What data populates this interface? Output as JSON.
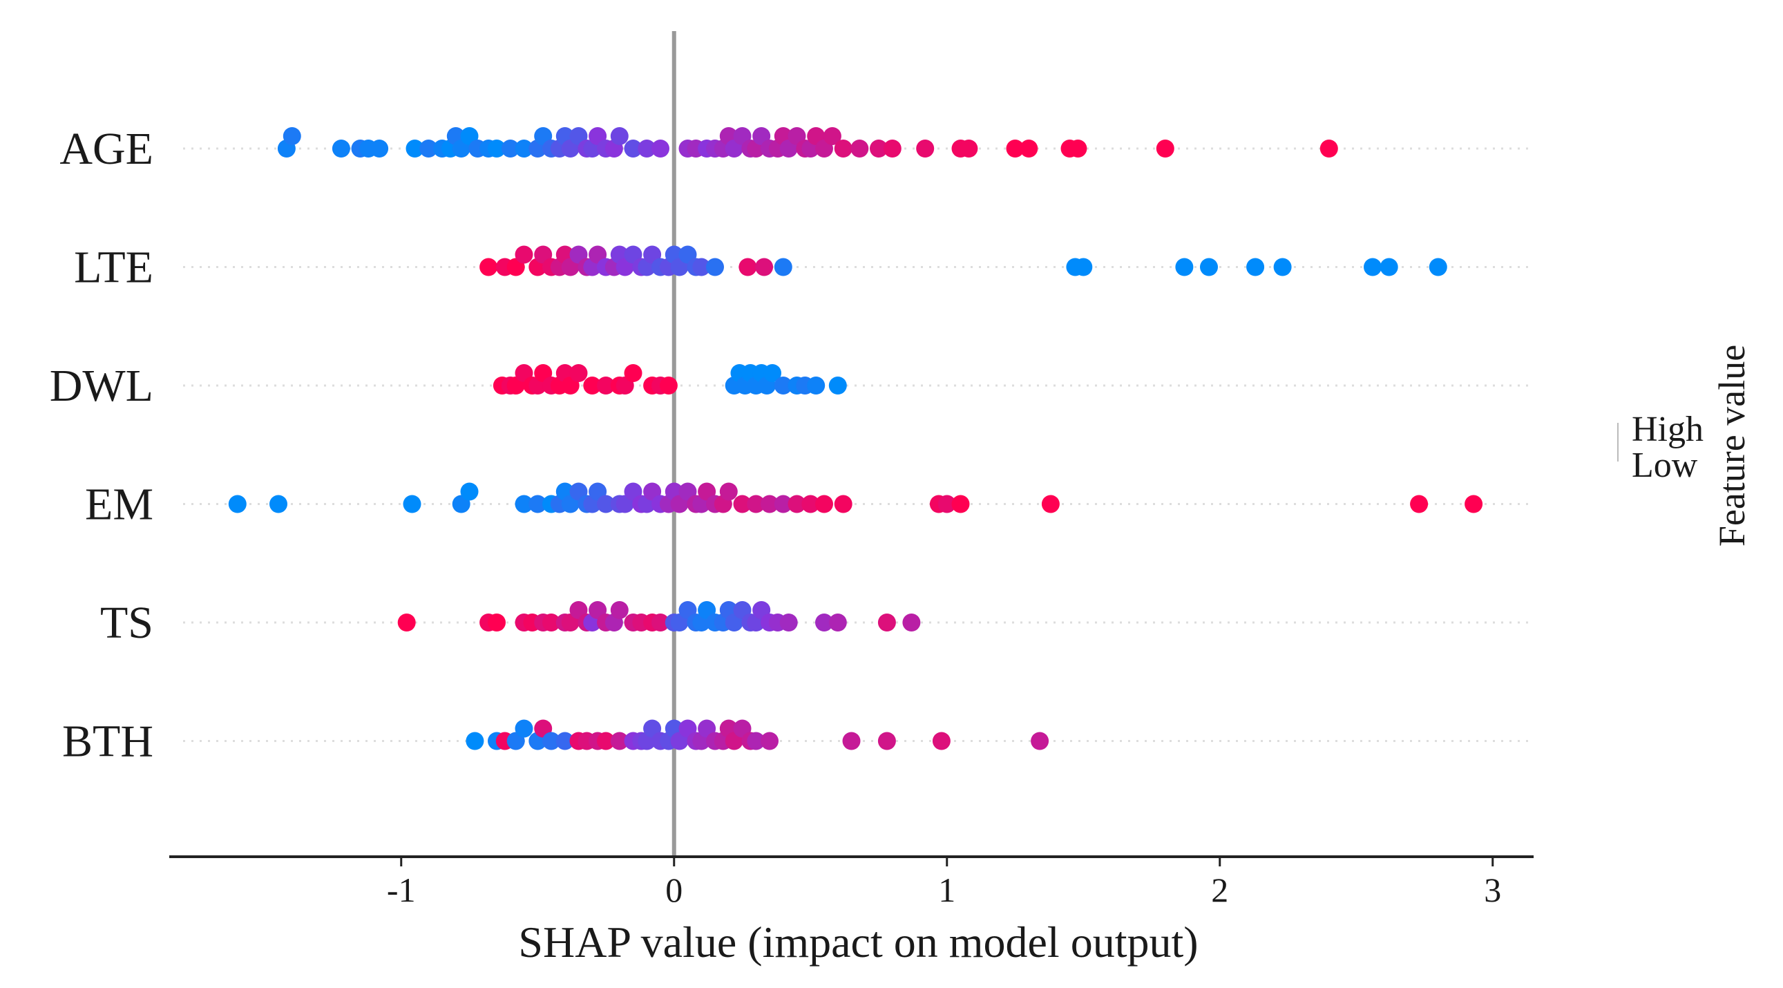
{
  "chart_data": {
    "type": "scatter",
    "subtype": "shap-beeswarm",
    "xlabel": "SHAP value (impact on model output)",
    "xlim": [
      -1.85,
      3.15
    ],
    "xticks": [
      -1,
      0,
      1,
      2,
      3
    ],
    "xtick_labels": [
      "-1",
      "0",
      "1",
      "2",
      "3"
    ],
    "zero_line": 0,
    "grid": false,
    "colorbar": {
      "title": "Feature value",
      "high_label": "High",
      "low_label": "Low",
      "high_color": "#ff0052",
      "low_color": "#008bfb"
    },
    "features": [
      {
        "name": "AGE",
        "points": [
          [
            -1.42,
            0.05
          ],
          [
            -1.4,
            0.1
          ],
          [
            -1.22,
            0.05
          ],
          [
            -1.15,
            0.1
          ],
          [
            -1.12,
            0.05
          ],
          [
            -1.08,
            0.05
          ],
          [
            -0.95,
            0.0
          ],
          [
            -0.9,
            0.1
          ],
          [
            -0.85,
            0.05
          ],
          [
            -0.82,
            0.0
          ],
          [
            -0.8,
            0.1
          ],
          [
            -0.78,
            0.05
          ],
          [
            -0.75,
            0.0
          ],
          [
            -0.72,
            0.1
          ],
          [
            -0.68,
            0.05
          ],
          [
            -0.65,
            0.0
          ],
          [
            -0.6,
            0.1
          ],
          [
            -0.55,
            0.05
          ],
          [
            -0.5,
            0.15
          ],
          [
            -0.48,
            0.1
          ],
          [
            -0.45,
            0.2
          ],
          [
            -0.42,
            0.3
          ],
          [
            -0.4,
            0.25
          ],
          [
            -0.38,
            0.35
          ],
          [
            -0.35,
            0.3
          ],
          [
            -0.32,
            0.45
          ],
          [
            -0.3,
            0.4
          ],
          [
            -0.28,
            0.5
          ],
          [
            -0.25,
            0.45
          ],
          [
            -0.22,
            0.5
          ],
          [
            -0.2,
            0.4
          ],
          [
            -0.15,
            0.35
          ],
          [
            -0.1,
            0.45
          ],
          [
            -0.05,
            0.5
          ],
          [
            0.05,
            0.55
          ],
          [
            0.08,
            0.6
          ],
          [
            0.12,
            0.5
          ],
          [
            0.15,
            0.55
          ],
          [
            0.18,
            0.6
          ],
          [
            0.2,
            0.65
          ],
          [
            0.22,
            0.55
          ],
          [
            0.25,
            0.6
          ],
          [
            0.28,
            0.65
          ],
          [
            0.3,
            0.7
          ],
          [
            0.32,
            0.6
          ],
          [
            0.35,
            0.65
          ],
          [
            0.38,
            0.7
          ],
          [
            0.4,
            0.75
          ],
          [
            0.42,
            0.65
          ],
          [
            0.45,
            0.7
          ],
          [
            0.48,
            0.75
          ],
          [
            0.5,
            0.7
          ],
          [
            0.52,
            0.8
          ],
          [
            0.55,
            0.75
          ],
          [
            0.58,
            0.8
          ],
          [
            0.62,
            0.85
          ],
          [
            0.68,
            0.8
          ],
          [
            0.75,
            0.85
          ],
          [
            0.8,
            0.9
          ],
          [
            0.92,
            0.9
          ],
          [
            1.05,
            0.95
          ],
          [
            1.08,
            0.95
          ],
          [
            1.25,
            1.0
          ],
          [
            1.3,
            1.0
          ],
          [
            1.45,
            1.0
          ],
          [
            1.48,
            1.0
          ],
          [
            1.8,
            1.0
          ],
          [
            2.4,
            1.0
          ]
        ]
      },
      {
        "name": "LTE",
        "points": [
          [
            -0.68,
            1.0
          ],
          [
            -0.62,
            0.95
          ],
          [
            -0.58,
            1.0
          ],
          [
            -0.55,
            0.9
          ],
          [
            -0.5,
            0.95
          ],
          [
            -0.48,
            0.85
          ],
          [
            -0.45,
            0.9
          ],
          [
            -0.42,
            0.8
          ],
          [
            -0.4,
            0.85
          ],
          [
            -0.38,
            0.75
          ],
          [
            -0.35,
            0.6
          ],
          [
            -0.32,
            0.7
          ],
          [
            -0.3,
            0.55
          ],
          [
            -0.28,
            0.65
          ],
          [
            -0.25,
            0.5
          ],
          [
            -0.22,
            0.6
          ],
          [
            -0.2,
            0.45
          ],
          [
            -0.18,
            0.5
          ],
          [
            -0.15,
            0.4
          ],
          [
            -0.12,
            0.45
          ],
          [
            -0.1,
            0.35
          ],
          [
            -0.08,
            0.4
          ],
          [
            -0.05,
            0.3
          ],
          [
            -0.02,
            0.35
          ],
          [
            0.0,
            0.25
          ],
          [
            0.02,
            0.3
          ],
          [
            0.05,
            0.2
          ],
          [
            0.08,
            0.25
          ],
          [
            0.1,
            0.3
          ],
          [
            0.15,
            0.15
          ],
          [
            0.27,
            0.9
          ],
          [
            0.33,
            0.85
          ],
          [
            0.4,
            0.1
          ],
          [
            1.47,
            0.0
          ],
          [
            1.5,
            0.0
          ],
          [
            1.87,
            0.0
          ],
          [
            1.96,
            0.0
          ],
          [
            2.13,
            0.0
          ],
          [
            2.23,
            0.0
          ],
          [
            2.56,
            0.0
          ],
          [
            2.62,
            0.0
          ],
          [
            2.8,
            0.0
          ]
        ]
      },
      {
        "name": "DWL",
        "points": [
          [
            -0.63,
            1.0
          ],
          [
            -0.6,
            0.95
          ],
          [
            -0.58,
            1.0
          ],
          [
            -0.55,
            0.95
          ],
          [
            -0.52,
            1.0
          ],
          [
            -0.5,
            0.95
          ],
          [
            -0.48,
            1.0
          ],
          [
            -0.45,
            0.95
          ],
          [
            -0.42,
            1.0
          ],
          [
            -0.4,
            0.95
          ],
          [
            -0.38,
            1.0
          ],
          [
            -0.35,
            0.95
          ],
          [
            -0.3,
            1.0
          ],
          [
            -0.25,
            0.95
          ],
          [
            -0.2,
            1.0
          ],
          [
            -0.18,
            0.95
          ],
          [
            -0.15,
            1.0
          ],
          [
            -0.08,
            1.0
          ],
          [
            -0.05,
            0.95
          ],
          [
            -0.02,
            1.0
          ],
          [
            0.22,
            0.05
          ],
          [
            0.24,
            0.0
          ],
          [
            0.26,
            0.05
          ],
          [
            0.28,
            0.0
          ],
          [
            0.3,
            0.05
          ],
          [
            0.32,
            0.0
          ],
          [
            0.34,
            0.05
          ],
          [
            0.36,
            0.0
          ],
          [
            0.4,
            0.1
          ],
          [
            0.45,
            0.05
          ],
          [
            0.48,
            0.1
          ],
          [
            0.52,
            0.05
          ],
          [
            0.6,
            0.0
          ]
        ]
      },
      {
        "name": "EM",
        "points": [
          [
            -1.6,
            0.0
          ],
          [
            -1.45,
            0.0
          ],
          [
            -0.96,
            0.0
          ],
          [
            -0.78,
            0.05
          ],
          [
            -0.75,
            0.0
          ],
          [
            -0.55,
            0.05
          ],
          [
            -0.5,
            0.1
          ],
          [
            -0.45,
            0.0
          ],
          [
            -0.42,
            0.15
          ],
          [
            -0.4,
            0.05
          ],
          [
            -0.38,
            0.1
          ],
          [
            -0.35,
            0.2
          ],
          [
            -0.32,
            0.15
          ],
          [
            -0.3,
            0.25
          ],
          [
            -0.28,
            0.2
          ],
          [
            -0.25,
            0.3
          ],
          [
            -0.2,
            0.35
          ],
          [
            -0.18,
            0.4
          ],
          [
            -0.15,
            0.45
          ],
          [
            -0.12,
            0.5
          ],
          [
            -0.1,
            0.45
          ],
          [
            -0.08,
            0.55
          ],
          [
            -0.05,
            0.5
          ],
          [
            -0.02,
            0.6
          ],
          [
            0.0,
            0.55
          ],
          [
            0.02,
            0.65
          ],
          [
            0.05,
            0.6
          ],
          [
            0.08,
            0.7
          ],
          [
            0.1,
            0.65
          ],
          [
            0.12,
            0.75
          ],
          [
            0.15,
            0.7
          ],
          [
            0.18,
            0.8
          ],
          [
            0.2,
            0.75
          ],
          [
            0.25,
            0.85
          ],
          [
            0.3,
            0.8
          ],
          [
            0.35,
            0.75
          ],
          [
            0.4,
            0.7
          ],
          [
            0.45,
            0.85
          ],
          [
            0.5,
            0.9
          ],
          [
            0.55,
            0.95
          ],
          [
            0.62,
            0.95
          ],
          [
            0.97,
            0.95
          ],
          [
            1.0,
            0.9
          ],
          [
            1.05,
            1.0
          ],
          [
            1.38,
            1.0
          ],
          [
            2.73,
            1.0
          ],
          [
            2.93,
            1.0
          ]
        ]
      },
      {
        "name": "TS",
        "points": [
          [
            -0.98,
            1.0
          ],
          [
            -0.68,
            0.95
          ],
          [
            -0.65,
            1.0
          ],
          [
            -0.55,
            0.9
          ],
          [
            -0.52,
            0.95
          ],
          [
            -0.48,
            0.85
          ],
          [
            -0.45,
            0.9
          ],
          [
            -0.4,
            0.8
          ],
          [
            -0.38,
            0.85
          ],
          [
            -0.35,
            0.75
          ],
          [
            -0.32,
            0.8
          ],
          [
            -0.3,
            0.5
          ],
          [
            -0.28,
            0.7
          ],
          [
            -0.25,
            0.75
          ],
          [
            -0.22,
            0.65
          ],
          [
            -0.2,
            0.7
          ],
          [
            -0.15,
            0.8
          ],
          [
            -0.12,
            0.85
          ],
          [
            -0.08,
            0.9
          ],
          [
            -0.05,
            0.85
          ],
          [
            0.0,
            0.3
          ],
          [
            0.02,
            0.25
          ],
          [
            0.05,
            0.2
          ],
          [
            0.08,
            0.15
          ],
          [
            0.1,
            0.1
          ],
          [
            0.12,
            0.05
          ],
          [
            0.15,
            0.1
          ],
          [
            0.18,
            0.15
          ],
          [
            0.2,
            0.2
          ],
          [
            0.22,
            0.25
          ],
          [
            0.25,
            0.3
          ],
          [
            0.28,
            0.35
          ],
          [
            0.3,
            0.4
          ],
          [
            0.32,
            0.45
          ],
          [
            0.35,
            0.5
          ],
          [
            0.38,
            0.55
          ],
          [
            0.42,
            0.6
          ],
          [
            0.55,
            0.6
          ],
          [
            0.6,
            0.65
          ],
          [
            0.78,
            0.85
          ],
          [
            0.87,
            0.7
          ]
        ]
      },
      {
        "name": "BTH",
        "points": [
          [
            -0.73,
            0.0
          ],
          [
            -0.65,
            0.05
          ],
          [
            -0.62,
            0.95
          ],
          [
            -0.58,
            0.1
          ],
          [
            -0.55,
            0.05
          ],
          [
            -0.5,
            0.1
          ],
          [
            -0.48,
            0.85
          ],
          [
            -0.45,
            0.15
          ],
          [
            -0.4,
            0.2
          ],
          [
            -0.35,
            0.9
          ],
          [
            -0.32,
            0.85
          ],
          [
            -0.28,
            0.8
          ],
          [
            -0.25,
            0.9
          ],
          [
            -0.2,
            0.75
          ],
          [
            -0.15,
            0.5
          ],
          [
            -0.12,
            0.45
          ],
          [
            -0.1,
            0.4
          ],
          [
            -0.08,
            0.35
          ],
          [
            -0.05,
            0.4
          ],
          [
            -0.02,
            0.35
          ],
          [
            0.0,
            0.3
          ],
          [
            0.02,
            0.45
          ],
          [
            0.05,
            0.5
          ],
          [
            0.08,
            0.55
          ],
          [
            0.1,
            0.6
          ],
          [
            0.12,
            0.55
          ],
          [
            0.15,
            0.65
          ],
          [
            0.18,
            0.7
          ],
          [
            0.2,
            0.75
          ],
          [
            0.22,
            0.8
          ],
          [
            0.25,
            0.7
          ],
          [
            0.28,
            0.75
          ],
          [
            0.3,
            0.65
          ],
          [
            0.35,
            0.7
          ],
          [
            0.65,
            0.75
          ],
          [
            0.78,
            0.8
          ],
          [
            0.98,
            0.85
          ],
          [
            1.34,
            0.75
          ]
        ]
      }
    ]
  }
}
